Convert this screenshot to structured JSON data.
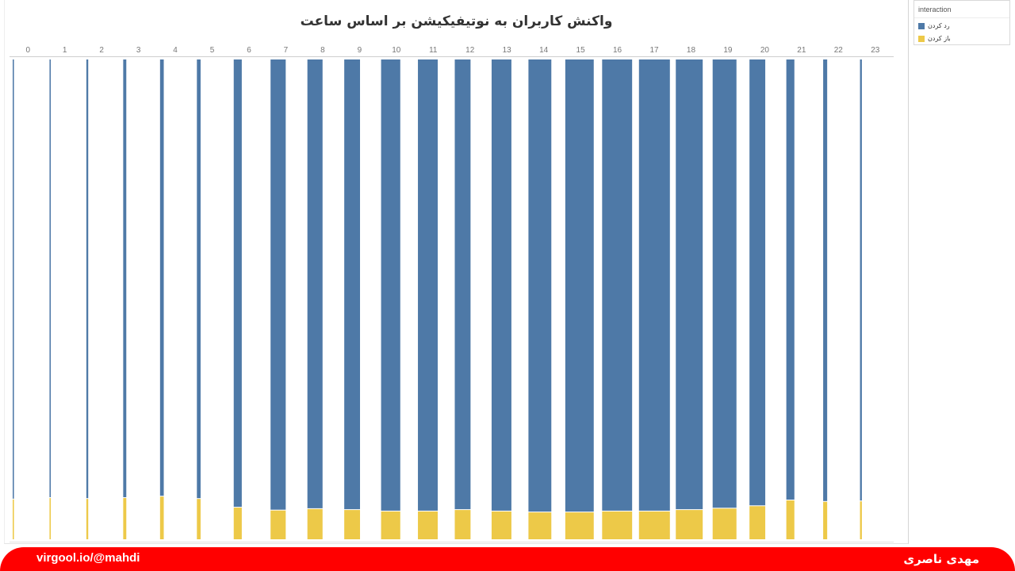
{
  "chart_data": {
    "type": "bar",
    "stacked": true,
    "normalized": true,
    "title": "واکنش کاربران به نوتیفیکیشن بر اساس ساعت",
    "xlabel": "",
    "ylabel": "",
    "categories": [
      "0",
      "1",
      "2",
      "3",
      "4",
      "5",
      "6",
      "7",
      "8",
      "9",
      "10",
      "11",
      "12",
      "13",
      "14",
      "15",
      "16",
      "17",
      "18",
      "19",
      "20",
      "21",
      "22",
      "23"
    ],
    "series": [
      {
        "name": "رد کردن",
        "color": "#4e79a7",
        "values": [
          91.7,
          91.4,
          91.6,
          91.4,
          91.1,
          91.6,
          93.4,
          94.0,
          93.7,
          93.9,
          94.2,
          94.2,
          93.9,
          94.2,
          94.4,
          94.4,
          94.2,
          94.2,
          93.9,
          93.6,
          93.1,
          91.9,
          92.2,
          92.1
        ]
      },
      {
        "name": "باز کردن",
        "color": "#edc948",
        "values": [
          8.3,
          8.6,
          8.4,
          8.6,
          8.9,
          8.4,
          6.6,
          6.0,
          6.3,
          6.1,
          5.8,
          5.8,
          6.1,
          5.8,
          5.6,
          5.6,
          5.8,
          5.8,
          6.1,
          6.4,
          6.9,
          8.1,
          7.8,
          7.9
        ]
      }
    ],
    "volume_relative": [
      0.04,
      0.04,
      0.06,
      0.1,
      0.12,
      0.12,
      0.26,
      0.49,
      0.49,
      0.51,
      0.62,
      0.64,
      0.51,
      0.64,
      0.74,
      0.92,
      0.97,
      1.0,
      0.87,
      0.77,
      0.51,
      0.26,
      0.13,
      0.06
    ],
    "ylim": [
      0,
      100
    ],
    "grid": false,
    "legend": {
      "title": "interaction",
      "position": "top-right"
    }
  },
  "footer": {
    "link_text": "virgool.io/@mahdi",
    "author": "مهدی ناصری",
    "background": "#ff0000"
  }
}
